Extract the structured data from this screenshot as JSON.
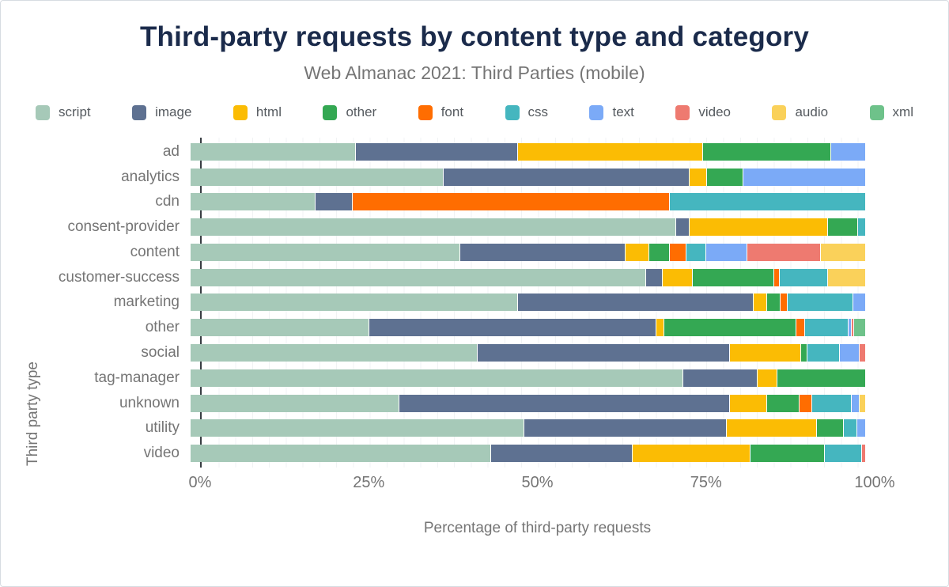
{
  "title": "Third-party requests by content type and category",
  "subtitle": "Web Almanac 2021: Third Parties (mobile)",
  "legend": [
    {
      "label": "script",
      "color": "#a6c9b8"
    },
    {
      "label": "image",
      "color": "#5e7191"
    },
    {
      "label": "html",
      "color": "#fbbc04"
    },
    {
      "label": "other",
      "color": "#34a853"
    },
    {
      "label": "font",
      "color": "#ff6d01"
    },
    {
      "label": "css",
      "color": "#45b6bf"
    },
    {
      "label": "text",
      "color": "#7baaf7"
    },
    {
      "label": "video",
      "color": "#ee7a70"
    },
    {
      "label": "audio",
      "color": "#fad15a"
    },
    {
      "label": "xml",
      "color": "#6ec28a"
    }
  ],
  "chart_data": {
    "type": "bar",
    "orientation": "horizontal",
    "stacked": true,
    "title": "Third-party requests by content type and category",
    "subtitle": "Web Almanac 2021: Third Parties (mobile)",
    "xlabel": "Percentage of third-party requests",
    "ylabel": "Third party type",
    "xlim": [
      0,
      100
    ],
    "x_ticks": [
      {
        "label": "0%",
        "pos": 0
      },
      {
        "label": "25%",
        "pos": 25
      },
      {
        "label": "50%",
        "pos": 50
      },
      {
        "label": "75%",
        "pos": 75
      },
      {
        "label": "100%",
        "pos": 100
      }
    ],
    "grid": "minor vertical every 2.5%",
    "legend_position": "top",
    "categories": [
      "ad",
      "analytics",
      "cdn",
      "consent-provider",
      "content",
      "customer-success",
      "marketing",
      "other",
      "social",
      "tag-manager",
      "unknown",
      "utility",
      "video"
    ],
    "series": [
      {
        "name": "script",
        "color": "#a6c9b8",
        "values": [
          24.5,
          37.5,
          18.5,
          72.0,
          40.0,
          67.5,
          48.5,
          26.5,
          42.5,
          73.0,
          31.0,
          49.5,
          44.5
        ]
      },
      {
        "name": "image",
        "color": "#5e7191",
        "values": [
          24.0,
          36.5,
          5.5,
          2.0,
          24.5,
          2.5,
          35.0,
          42.5,
          37.5,
          11.0,
          49.0,
          30.0,
          21.0
        ]
      },
      {
        "name": "html",
        "color": "#fbbc04",
        "values": [
          27.5,
          2.5,
          0,
          20.5,
          3.5,
          4.5,
          2.0,
          1.2,
          10.5,
          3.0,
          5.5,
          13.3,
          17.5
        ]
      },
      {
        "name": "other",
        "color": "#34a853",
        "values": [
          19.0,
          5.5,
          0,
          4.5,
          3.0,
          12.0,
          2.0,
          19.6,
          1.0,
          13.0,
          4.8,
          4.0,
          11.0
        ]
      },
      {
        "name": "font",
        "color": "#ff6d01",
        "values": [
          0,
          0,
          47.0,
          0,
          2.5,
          0.8,
          1.0,
          1.3,
          0,
          0,
          1.9,
          0,
          0
        ]
      },
      {
        "name": "css",
        "color": "#45b6bf",
        "values": [
          0,
          0,
          29.0,
          1.0,
          3.0,
          7.2,
          9.8,
          6.4,
          4.7,
          0,
          5.8,
          2.0,
          5.5
        ]
      },
      {
        "name": "text",
        "color": "#7baaf7",
        "values": [
          5.0,
          18.0,
          0,
          0,
          6.0,
          0,
          1.7,
          0.5,
          3.0,
          0,
          1.2,
          1.2,
          0
        ]
      },
      {
        "name": "video",
        "color": "#ee7a70",
        "values": [
          0,
          0,
          0,
          0,
          11.0,
          0,
          0,
          0.4,
          0.8,
          0,
          0,
          0,
          0.5
        ]
      },
      {
        "name": "audio",
        "color": "#fad15a",
        "values": [
          0,
          0,
          0,
          0,
          6.5,
          5.5,
          0,
          0,
          0,
          0,
          0.8,
          0,
          0
        ]
      },
      {
        "name": "xml",
        "color": "#6ec28a",
        "values": [
          0,
          0,
          0,
          0,
          0,
          0,
          0,
          1.6,
          0,
          0,
          0,
          0,
          0
        ]
      }
    ]
  }
}
